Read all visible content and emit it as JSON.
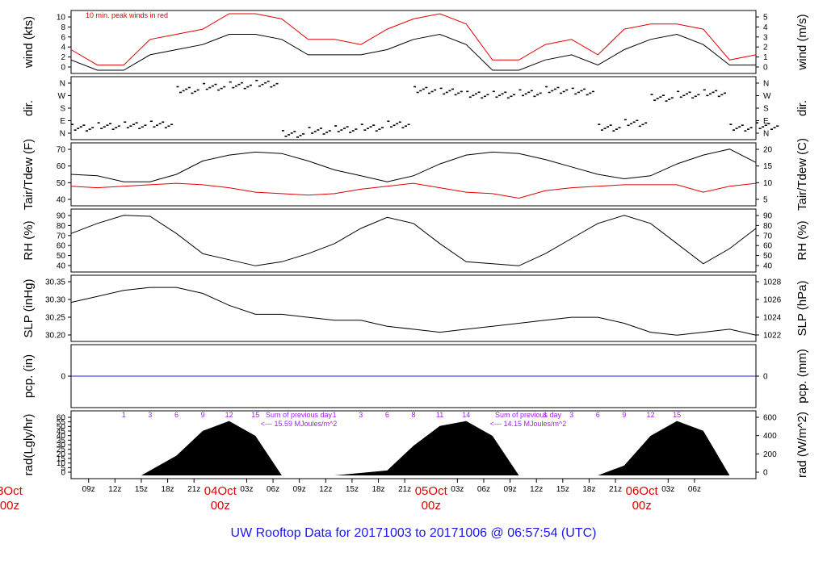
{
  "title": "UW Rooftop Data for 20171003  to  20171006 @ 06:57:54  (UTC)",
  "chart_data": [
    {
      "type": "line",
      "panel": "wind",
      "ylabel_left": "wind (kts)",
      "ylabel_right": "wind (m/s)",
      "ylim": [
        0,
        11
      ],
      "yticks_left": [
        "0",
        "2",
        "4",
        "6",
        "8",
        "10"
      ],
      "yticks_right": [
        "0",
        "1",
        "2",
        "3",
        "4",
        "5"
      ],
      "annotation": "10 min. peak winds in red",
      "series": [
        {
          "name": "10 min. peak winds in red",
          "color": "#e00000",
          "x": [
            0,
            3,
            6,
            9,
            12,
            15,
            18,
            21,
            24,
            27,
            30,
            33,
            36,
            39,
            42,
            45,
            48,
            51,
            54,
            57,
            60,
            63,
            66,
            69,
            72,
            75,
            78
          ],
          "values": [
            4,
            1,
            1,
            6,
            7,
            8,
            11,
            11,
            10,
            6,
            6,
            5,
            8,
            10,
            11,
            9,
            2,
            2,
            5,
            6,
            3,
            8,
            9,
            9,
            8,
            2,
            3
          ]
        },
        {
          "color": "#000000",
          "x": [
            0,
            3,
            6,
            9,
            12,
            15,
            18,
            21,
            24,
            27,
            30,
            33,
            36,
            39,
            42,
            45,
            48,
            51,
            54,
            57,
            60,
            63,
            66,
            69,
            72,
            75,
            78
          ],
          "values": [
            2,
            0,
            0,
            3,
            4,
            5,
            7,
            7,
            6,
            3,
            3,
            3,
            4,
            6,
            7,
            5,
            0,
            0,
            2,
            3,
            1,
            4,
            6,
            7,
            5,
            1,
            1
          ]
        }
      ]
    },
    {
      "type": "scatter",
      "panel": "dir",
      "ylabel_left": "dir.",
      "ylabel_right": "dir.",
      "yticks_left": [
        "N",
        "E",
        "S",
        "W",
        "N"
      ],
      "yticks_right": [
        "N",
        "E",
        "S",
        "W",
        "N"
      ],
      "ylim": [
        0,
        360
      ],
      "x": [
        0,
        3,
        6,
        9,
        12,
        15,
        18,
        21,
        24,
        27,
        30,
        33,
        36,
        39,
        42,
        45,
        48,
        51,
        54,
        57,
        60,
        63,
        66,
        69,
        72,
        75,
        78
      ],
      "values": [
        60,
        70,
        75,
        80,
        300,
        320,
        330,
        340,
        20,
        40,
        50,
        60,
        80,
        300,
        290,
        270,
        270,
        280,
        300,
        290,
        60,
        90,
        250,
        270,
        280,
        60,
        70
      ]
    },
    {
      "type": "line",
      "panel": "temp",
      "ylabel_left": "Tair/Tdew (F)",
      "ylabel_right": "Tair/Tdew (C)",
      "ylim": [
        34,
        72
      ],
      "yticks_left": [
        "40",
        "50",
        "60",
        "70"
      ],
      "yticks_right": [
        "5",
        "10",
        "15",
        "20"
      ],
      "series": [
        {
          "color": "#000000",
          "x": [
            0,
            3,
            6,
            9,
            12,
            15,
            18,
            21,
            24,
            27,
            30,
            33,
            36,
            39,
            42,
            45,
            48,
            51,
            54,
            57,
            60,
            63,
            66,
            69,
            72,
            75,
            78
          ],
          "values": [
            53,
            52,
            48,
            48,
            53,
            62,
            66,
            68,
            67,
            62,
            56,
            52,
            48,
            52,
            60,
            66,
            68,
            67,
            63,
            58,
            53,
            50,
            52,
            60,
            66,
            70,
            61
          ]
        },
        {
          "color": "#e00000",
          "x": [
            0,
            3,
            6,
            9,
            12,
            15,
            18,
            21,
            24,
            27,
            30,
            33,
            36,
            39,
            42,
            45,
            48,
            51,
            54,
            57,
            60,
            63,
            66,
            69,
            72,
            75,
            78
          ],
          "values": [
            45,
            44,
            45,
            46,
            47,
            46,
            44,
            41,
            40,
            39,
            40,
            43,
            45,
            47,
            44,
            41,
            40,
            37,
            42,
            44,
            45,
            46,
            46,
            46,
            41,
            45,
            47
          ]
        }
      ]
    },
    {
      "type": "line",
      "panel": "rh",
      "ylabel_left": "RH (%)",
      "ylabel_right": "RH (%)",
      "ylim": [
        35,
        91
      ],
      "yticks_left": [
        "40",
        "50",
        "60",
        "70",
        "80",
        "90"
      ],
      "yticks_right": [
        "40",
        "50",
        "60",
        "70",
        "80",
        "90"
      ],
      "x": [
        0,
        3,
        6,
        9,
        12,
        15,
        18,
        21,
        24,
        27,
        30,
        33,
        36,
        39,
        42,
        45,
        48,
        51,
        54,
        57,
        60,
        63,
        66,
        69,
        72,
        75,
        78
      ],
      "values": [
        70,
        80,
        88,
        87,
        70,
        50,
        44,
        38,
        42,
        50,
        60,
        75,
        86,
        80,
        60,
        42,
        40,
        38,
        50,
        65,
        80,
        88,
        80,
        60,
        40,
        55,
        75
      ]
    },
    {
      "type": "line",
      "panel": "slp",
      "ylabel_left": "SLP (inHg)",
      "ylabel_right": "SLP (hPa)",
      "ylim": [
        30.18,
        30.38
      ],
      "yticks_left": [
        "30.20",
        "30.25",
        "30.30",
        "30.35"
      ],
      "yticks_right": [
        "1022",
        "1024",
        "1026",
        "1028"
      ],
      "x": [
        0,
        3,
        6,
        9,
        12,
        15,
        18,
        21,
        24,
        27,
        30,
        33,
        36,
        39,
        42,
        45,
        48,
        51,
        54,
        57,
        60,
        63,
        66,
        69,
        72,
        75,
        78
      ],
      "values": [
        30.3,
        30.32,
        30.34,
        30.35,
        30.35,
        30.33,
        30.29,
        30.26,
        30.26,
        30.25,
        30.24,
        30.24,
        30.22,
        30.21,
        30.2,
        30.21,
        30.22,
        30.23,
        30.24,
        30.25,
        30.25,
        30.23,
        30.2,
        30.19,
        30.2,
        30.21,
        30.19
      ]
    },
    {
      "type": "line",
      "panel": "pcp",
      "ylabel_left": "pcp. (in)",
      "ylabel_right": "pcp. (mm)",
      "yticks_left": [
        "0"
      ],
      "yticks_right": [
        "0"
      ],
      "x": [
        0,
        78
      ],
      "values": [
        0,
        0
      ]
    },
    {
      "type": "area",
      "panel": "rad",
      "ylabel_left": "rad(Lgly/hr)",
      "ylabel_right": "rad (W/m^2)",
      "ylim": [
        0,
        62
      ],
      "yticks_left": [
        "0",
        "5",
        "10",
        "15",
        "20",
        "25",
        "30",
        "35",
        "40",
        "45",
        "50",
        "55",
        "60"
      ],
      "yticks_right": [
        "0",
        "200",
        "400",
        "600"
      ],
      "annotations": [
        {
          "text": "Sum of previous day",
          "line2": "<--- 15.59 MJoules/m^2"
        },
        {
          "text": "Sum of previous day",
          "line2": "<--- 14.15 MJoules/m^2"
        }
      ],
      "hour_marks": [
        [
          "1",
          "3",
          "6",
          "9",
          "12",
          "15"
        ],
        [
          "1",
          "3",
          "6",
          "8",
          "11",
          "14"
        ],
        [
          "1",
          "3",
          "6",
          "9",
          "12",
          "15"
        ]
      ],
      "x": [
        0,
        8,
        12,
        15,
        18,
        21,
        24,
        30,
        36,
        39,
        42,
        45,
        48,
        51,
        60,
        63,
        66,
        69,
        72,
        75,
        78
      ],
      "values": [
        0,
        0,
        20,
        45,
        55,
        40,
        0,
        0,
        5,
        30,
        50,
        55,
        40,
        0,
        0,
        10,
        40,
        55,
        45,
        0,
        0
      ]
    }
  ],
  "x_axis": {
    "ticks": [
      "09z",
      "12z",
      "15z",
      "18z",
      "21z",
      "03z",
      "06z",
      "09z",
      "12z",
      "15z",
      "18z",
      "21z",
      "03z",
      "06z",
      "09z",
      "12z",
      "15z",
      "18z",
      "21z",
      "03z",
      "06z"
    ],
    "days": [
      {
        "label": "3Oct",
        "sub": "00z"
      },
      {
        "label": "04Oct",
        "sub": "00z"
      },
      {
        "label": "05Oct",
        "sub": "00z"
      },
      {
        "label": "06Oct",
        "sub": "00z"
      }
    ]
  }
}
